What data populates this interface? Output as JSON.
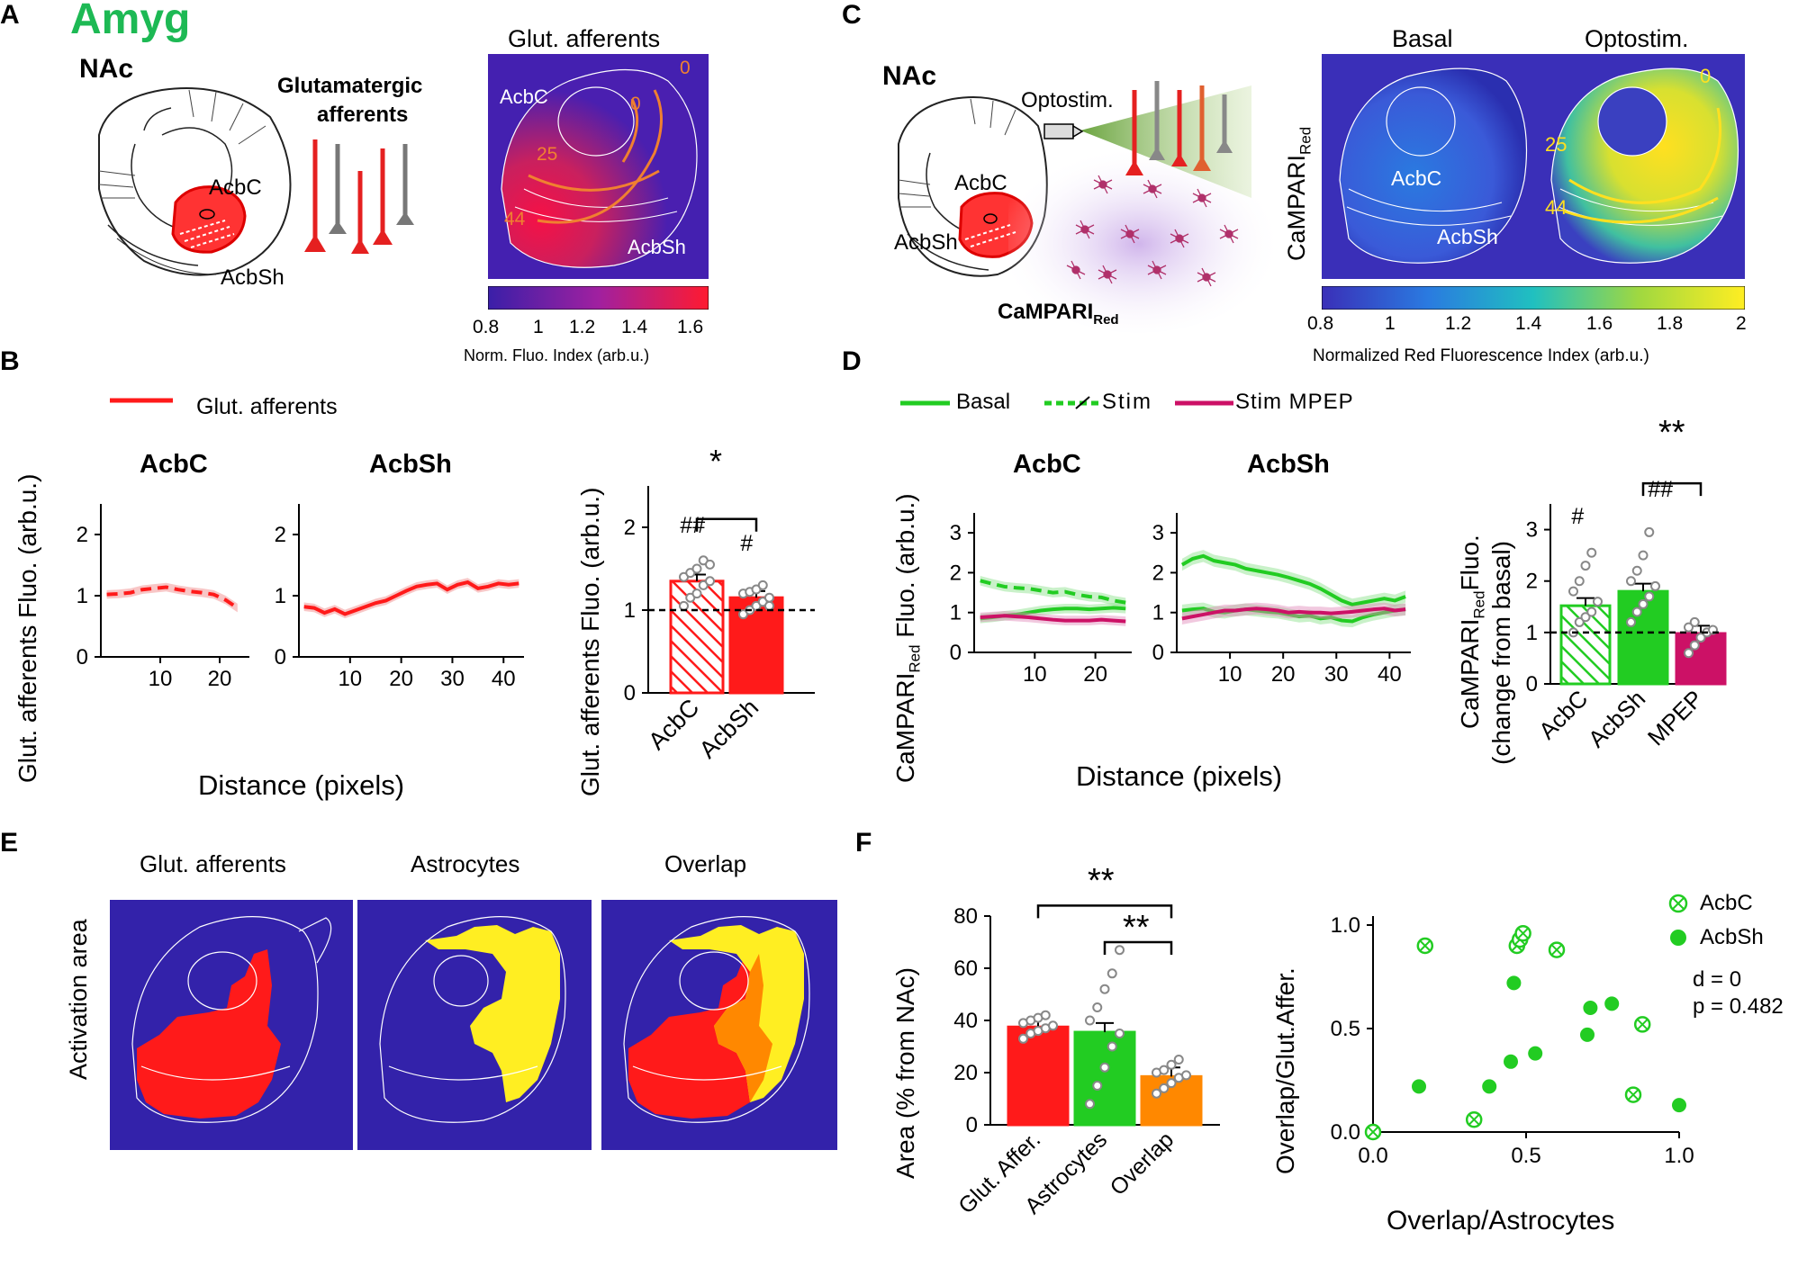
{
  "panels": {
    "A": {
      "letter": "A",
      "title": "Amyg",
      "region": "NAc",
      "afferent_label_1": "Glutamatergic",
      "afferent_label_2": "afferents",
      "atlas_core": "AcbC",
      "atlas_shell": "AcbSh",
      "map_title": "Glut. afferents",
      "map_core": "AcbC",
      "map_shell": "AcbSh",
      "map_marks": [
        "0",
        "0",
        "25",
        "44"
      ],
      "colorbar_ticks": [
        "0.8",
        "1",
        "1.2",
        "1.4",
        "1.6"
      ],
      "colorbar_label": "Norm. Fluo. Index (arb.u.)"
    },
    "C": {
      "letter": "C",
      "region": "NAc",
      "optostim": "Optostim.",
      "atlas_core": "AcbC",
      "atlas_shell": "AcbSh",
      "camp_label": "CaMPARI",
      "camp_sub": "Red",
      "basal_title": "Basal",
      "opto_title": "Optostim.",
      "map_core": "AcbC",
      "map_shell": "AcbSh",
      "map_marks": [
        "0",
        "25",
        "44"
      ],
      "ylabel": "CaMPARI",
      "ylabel_sub": "Red",
      "colorbar_ticks": [
        "0.8",
        "1",
        "1.2",
        "1.4",
        "1.6",
        "1.8",
        "2"
      ],
      "colorbar_label": "Normalized Red Fluorescence Index (arb.u.)"
    },
    "B": {
      "letter": "B",
      "legend": "Glut. afferents",
      "title_core": "AcbC",
      "title_shell": "AcbSh",
      "ylabel": "Glut. afferents Fluo. (arb.u.)",
      "xlabel": "Distance (pixels)",
      "bar_ylabel": "Glut. afferents Fluo. (arb.u.)",
      "sig": "*",
      "hash_core": "##",
      "hash_shell": "#"
    },
    "D": {
      "letter": "D",
      "legend": [
        "Basal",
        "Stim",
        "Stim MPEP"
      ],
      "title_core": "AcbC",
      "title_shell": "AcbSh",
      "ylabel_a": "CaMPARI",
      "ylabel_sub": "Red",
      "ylabel_b": "Fluo. (arb.u.)",
      "xlabel": "Distance (pixels)",
      "bar_ylabel_a": "CaMPARI",
      "bar_ylabel_sub": "Red",
      "bar_ylabel_b": "Fluo.",
      "bar_ylabel_c": "(change from basal)",
      "sig": "**",
      "hash_core": "#",
      "hash_shell": "##"
    },
    "E": {
      "letter": "E",
      "titles": [
        "Glut. afferents",
        "Astrocytes",
        "Overlap"
      ],
      "ylabel": "Activation area"
    },
    "F": {
      "letter": "F",
      "ylabel": "Area (% from NAc)",
      "sig1": "**",
      "sig2": "**",
      "scatter_xlabel": "Overlap/Astrocytes",
      "scatter_ylabel": "Overlap/Glut.Affer.",
      "legend": [
        "AcbC",
        "AcbSh"
      ],
      "stat_d": "d = 0",
      "stat_p": "p = 0.482"
    }
  },
  "chart_data": [
    {
      "id": "B-line-core",
      "type": "line",
      "title": "AcbC",
      "x": [
        1,
        3,
        5,
        7,
        9,
        11,
        13,
        15,
        17,
        19,
        21,
        23
      ],
      "series": [
        {
          "name": "Glut. afferents",
          "values": [
            1.02,
            1.03,
            1.05,
            1.1,
            1.12,
            1.14,
            1.1,
            1.07,
            1.05,
            1.02,
            0.93,
            0.8
          ]
        }
      ],
      "xlim": [
        0,
        25
      ],
      "ylim": [
        0,
        2.5
      ],
      "xticks": [
        10,
        20
      ],
      "yticks": [
        0,
        1,
        2
      ]
    },
    {
      "id": "B-line-shell",
      "type": "line",
      "title": "AcbSh",
      "x": [
        1,
        3,
        5,
        7,
        9,
        11,
        13,
        15,
        17,
        19,
        21,
        23,
        25,
        27,
        29,
        31,
        33,
        35,
        37,
        39,
        41,
        43
      ],
      "series": [
        {
          "name": "Glut. afferents",
          "values": [
            0.82,
            0.8,
            0.72,
            0.78,
            0.7,
            0.76,
            0.82,
            0.88,
            0.92,
            1.0,
            1.08,
            1.15,
            1.18,
            1.2,
            1.1,
            1.18,
            1.22,
            1.12,
            1.15,
            1.2,
            1.18,
            1.2
          ]
        }
      ],
      "xlim": [
        0,
        44
      ],
      "ylim": [
        0,
        2.5
      ],
      "xticks": [
        10,
        20,
        30,
        40
      ],
      "yticks": [
        0,
        1,
        2
      ]
    },
    {
      "id": "B-bar",
      "type": "bar",
      "categories": [
        "AcbC",
        "AcbSh"
      ],
      "values": [
        1.35,
        1.15
      ],
      "points": [
        [
          1.05,
          1.15,
          1.2,
          1.3,
          1.35,
          1.4,
          1.45,
          1.5,
          1.6,
          1.55
        ],
        [
          0.95,
          1.0,
          1.05,
          1.1,
          1.15,
          1.2,
          1.22,
          1.25,
          1.3,
          1.05
        ]
      ],
      "ylim": [
        0,
        2.5
      ],
      "yticks": [
        0,
        1,
        2
      ],
      "reference": 1
    },
    {
      "id": "D-line-core",
      "type": "line",
      "title": "AcbC",
      "x": [
        1,
        3,
        5,
        7,
        9,
        11,
        13,
        15,
        17,
        19,
        21,
        23,
        25
      ],
      "series": [
        {
          "name": "Basal",
          "values": [
            0.85,
            0.88,
            0.92,
            0.95,
            1.0,
            1.05,
            1.08,
            1.1,
            1.1,
            1.08,
            1.1,
            1.12,
            1.1
          ]
        },
        {
          "name": "Stim",
          "values": [
            1.8,
            1.72,
            1.65,
            1.62,
            1.6,
            1.55,
            1.5,
            1.52,
            1.45,
            1.4,
            1.38,
            1.3,
            1.25
          ]
        },
        {
          "name": "Stim MPEP",
          "values": [
            0.88,
            0.9,
            0.92,
            0.9,
            0.88,
            0.85,
            0.82,
            0.8,
            0.8,
            0.8,
            0.82,
            0.8,
            0.78
          ]
        }
      ],
      "xlim": [
        0,
        26
      ],
      "ylim": [
        0,
        3.5
      ],
      "xticks": [
        10,
        20
      ],
      "yticks": [
        0,
        1,
        2,
        3
      ]
    },
    {
      "id": "D-line-shell",
      "type": "line",
      "title": "AcbSh",
      "x": [
        1,
        3,
        5,
        7,
        9,
        11,
        13,
        15,
        17,
        19,
        21,
        23,
        25,
        27,
        29,
        31,
        33,
        35,
        37,
        39,
        41,
        43
      ],
      "series": [
        {
          "name": "Basal",
          "values": [
            1.05,
            1.08,
            1.1,
            1.02,
            1.0,
            1.05,
            1.08,
            1.05,
            1.02,
            1.0,
            0.95,
            0.9,
            0.92,
            0.85,
            0.88,
            0.8,
            0.78,
            0.88,
            0.95,
            1.0,
            1.05,
            1.08
          ]
        },
        {
          "name": "Stim",
          "values": [
            2.2,
            2.35,
            2.42,
            2.3,
            2.25,
            2.2,
            2.1,
            2.05,
            2.0,
            1.95,
            1.88,
            1.8,
            1.72,
            1.6,
            1.45,
            1.3,
            1.2,
            1.25,
            1.3,
            1.35,
            1.3,
            1.4
          ]
        },
        {
          "name": "Stim MPEP",
          "values": [
            0.85,
            0.9,
            0.95,
            1.0,
            1.05,
            1.05,
            1.08,
            1.1,
            1.08,
            1.05,
            1.0,
            1.02,
            1.0,
            1.0,
            0.98,
            1.0,
            1.02,
            1.05,
            1.08,
            1.1,
            1.05,
            1.08
          ]
        }
      ],
      "xlim": [
        0,
        44
      ],
      "ylim": [
        0,
        3.5
      ],
      "xticks": [
        10,
        20,
        30,
        40
      ],
      "yticks": [
        0,
        1,
        2,
        3
      ]
    },
    {
      "id": "D-bar",
      "type": "bar",
      "categories": [
        "AcbC",
        "AcbSh",
        "MPEP"
      ],
      "values": [
        1.52,
        1.8,
        0.98
      ],
      "points": [
        [
          1.0,
          1.2,
          1.3,
          1.4,
          1.6,
          1.8,
          2.0,
          2.3,
          2.55
        ],
        [
          1.2,
          1.4,
          1.55,
          1.7,
          1.9,
          2.0,
          2.2,
          2.5,
          2.95
        ],
        [
          0.6,
          0.75,
          0.9,
          1.0,
          1.05,
          1.1,
          1.2
        ]
      ],
      "ylim": [
        0,
        3.5
      ],
      "yticks": [
        0,
        1,
        2,
        3
      ],
      "reference": 1
    },
    {
      "id": "F-bar",
      "type": "bar",
      "categories": [
        "Glut. Affer.",
        "Astrocytes",
        "Overlap"
      ],
      "values": [
        37.5,
        35.5,
        18.5
      ],
      "points": [
        [
          33,
          35,
          36,
          37,
          38,
          39,
          40,
          41,
          42
        ],
        [
          8,
          15,
          22,
          30,
          35,
          40,
          45,
          52,
          58,
          67
        ],
        [
          12,
          14,
          16,
          18,
          19,
          20,
          21,
          23,
          25
        ]
      ],
      "ylim": [
        0,
        80
      ],
      "yticks": [
        0,
        20,
        40,
        60,
        80
      ]
    },
    {
      "id": "F-scatter",
      "type": "scatter",
      "series": [
        {
          "name": "AcbC",
          "x": [
            0.0,
            0.17,
            0.33,
            0.47,
            0.48,
            0.49,
            0.6,
            0.85,
            0.88
          ],
          "y": [
            0.0,
            0.9,
            0.06,
            0.9,
            0.93,
            0.96,
            0.88,
            0.18,
            0.52
          ]
        },
        {
          "name": "AcbSh",
          "x": [
            0.15,
            0.38,
            0.45,
            0.46,
            0.53,
            0.7,
            0.71,
            0.78,
            1.0
          ],
          "y": [
            0.22,
            0.22,
            0.34,
            0.72,
            0.38,
            0.47,
            0.6,
            0.62,
            0.13
          ]
        }
      ],
      "xlim": [
        0,
        1.0
      ],
      "ylim": [
        0,
        1.0
      ],
      "xticks": [
        0.0,
        0.5,
        1.0
      ],
      "yticks": [
        0.0,
        0.5,
        1.0
      ]
    }
  ],
  "colors": {
    "red": "#ff1a1a",
    "green": "#22cc22",
    "magenta": "#cc1166",
    "orange": "#ff8800",
    "yellow": "#ffee22",
    "navy": "#3322aa",
    "gray": "#888888",
    "title_green": "#1db954"
  }
}
